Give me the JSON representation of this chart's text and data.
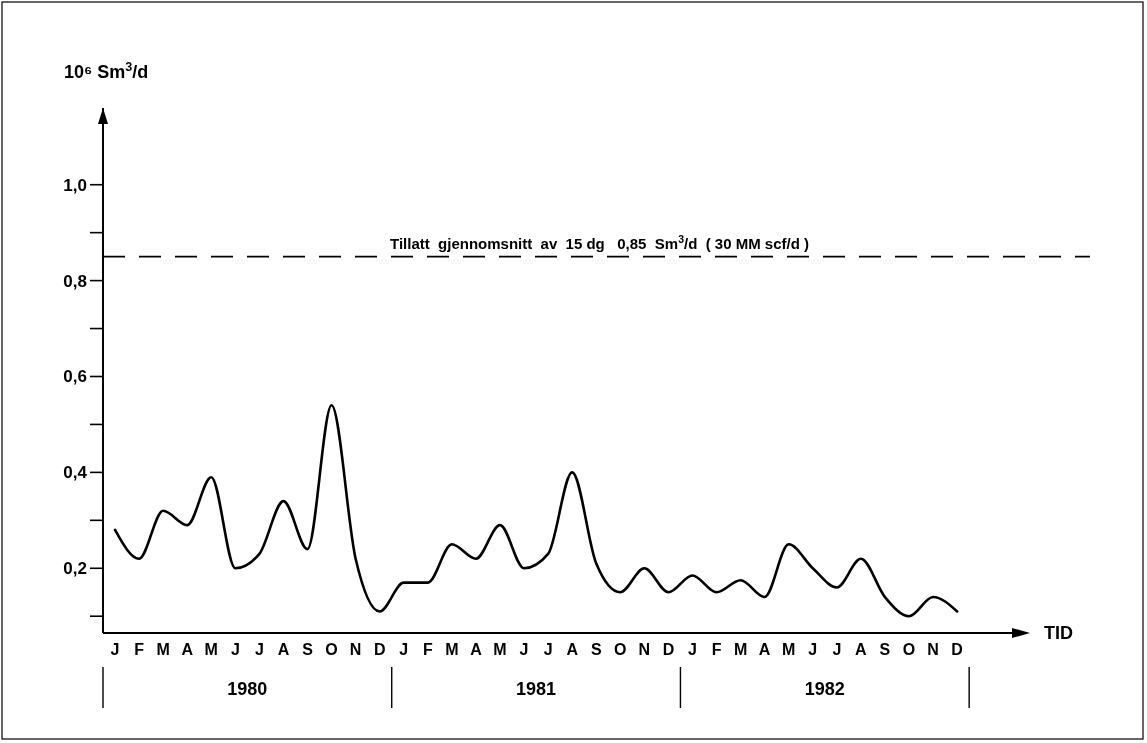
{
  "chart_data": {
    "type": "line",
    "ylabel": "10⁶ Sm$^{3}$/d",
    "xlabel": "TID",
    "categories": [
      "J",
      "F",
      "M",
      "A",
      "M",
      "J",
      "J",
      "A",
      "S",
      "O",
      "N",
      "D",
      "J",
      "F",
      "M",
      "A",
      "M",
      "J",
      "J",
      "A",
      "S",
      "O",
      "N",
      "D",
      "J",
      "F",
      "M",
      "A",
      "M",
      "J",
      "J",
      "A",
      "S",
      "O",
      "N",
      "D"
    ],
    "ylim": [
      0.065,
      1.16
    ],
    "yticks": [
      {
        "value": 0.1,
        "label": null
      },
      {
        "value": 0.2,
        "label": "0,2"
      },
      {
        "value": 0.3,
        "label": null
      },
      {
        "value": 0.4,
        "label": "0,4"
      },
      {
        "value": 0.5,
        "label": null
      },
      {
        "value": 0.6,
        "label": "0,6"
      },
      {
        "value": 0.7,
        "label": null
      },
      {
        "value": 0.8,
        "label": "0,8"
      },
      {
        "value": 0.9,
        "label": null
      },
      {
        "value": 1.0,
        "label": "1,0"
      }
    ],
    "ref_lines": [
      {
        "axis": "y",
        "value": 0.85,
        "label": "Tillatt  gjennomsnitt  av  15 dg   0,85  Sm$^{3}$/d  ( 30 MM scf/d )",
        "line_style": "dashed",
        "color": "#000000"
      }
    ],
    "annotations": [
      "1980",
      "1981",
      "1982"
    ],
    "series": [
      {
        "color": "#000000",
        "values": [
          0.28,
          0.22,
          0.32,
          0.29,
          0.39,
          0.2,
          0.23,
          0.34,
          0.24,
          0.54,
          0.22,
          0.11,
          0.17,
          0.17,
          0.25,
          0.22,
          0.29,
          0.2,
          0.23,
          0.4,
          0.21,
          0.15,
          0.2,
          0.15,
          0.185,
          0.15,
          0.175,
          0.14,
          0.25,
          0.2,
          0.16,
          0.22,
          0.14,
          0.1,
          0.14,
          0.11
        ]
      }
    ]
  }
}
